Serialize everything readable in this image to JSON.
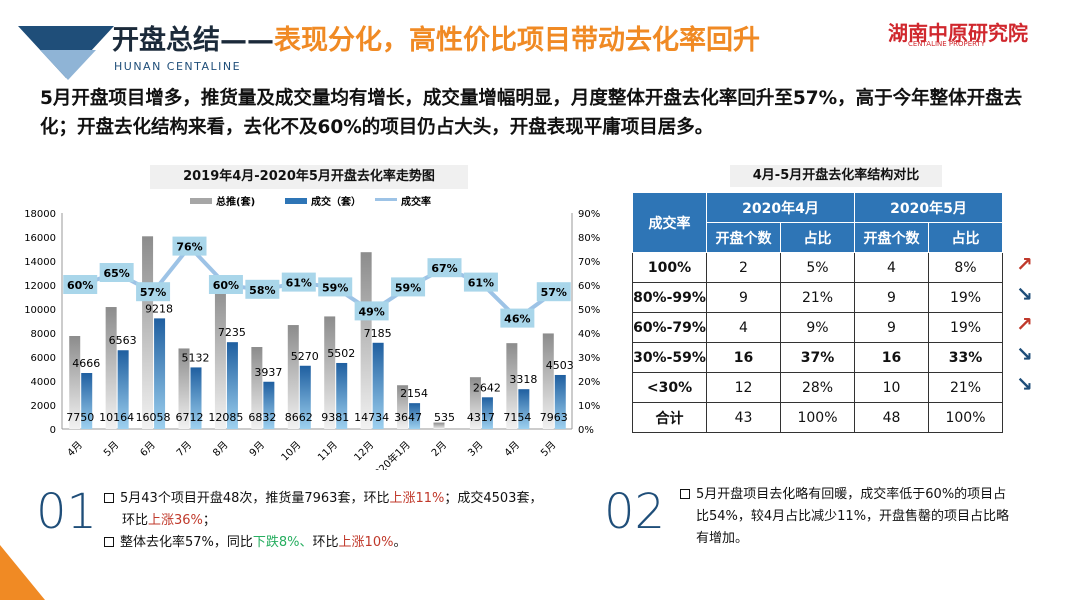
{
  "header": {
    "title_main": "开盘总结——",
    "title_accent": "表现分化，高性价比项目带动去化率回升",
    "subtitle": "HUNAN CENTALINE",
    "brand": "湖南中原研究院",
    "brand_en": "CENTALINE PROPERTY"
  },
  "intro": "5月开盘项目增多，推货量及成交量均有增长，成交量增幅明显，月度整体开盘去化率回升至57%，高于今年整体开盘去化；开盘去化结构来看，去化不及60%的项目仍占大头，开盘表现平庸项目居多。",
  "chart_data": {
    "type": "bar+line",
    "title": "2019年4月-2020年5月开盘去化率走势图",
    "categories": [
      "4月",
      "5月",
      "6月",
      "7月",
      "8月",
      "9月",
      "10月",
      "11月",
      "12月",
      "2020年1月",
      "2月",
      "3月",
      "4月",
      "5月"
    ],
    "series": [
      {
        "name": "总推(套)",
        "type": "bar",
        "color": "#a6a6a6",
        "values": [
          7750,
          10164,
          16058,
          6712,
          12085,
          6832,
          8662,
          9381,
          14734,
          3647,
          535,
          4317,
          7154,
          7963
        ]
      },
      {
        "name": "成交（套）",
        "type": "bar",
        "color": "#2e75b6",
        "values": [
          4666,
          6563,
          9218,
          5132,
          7235,
          3937,
          5270,
          5502,
          7185,
          2154,
          null,
          2642,
          3318,
          4503
        ]
      },
      {
        "name": "成交率",
        "type": "line",
        "axis": "right",
        "color": "#9dc3e6",
        "values": [
          60,
          65,
          57,
          76,
          60,
          58,
          61,
          59,
          49,
          59,
          67,
          61,
          46,
          57
        ]
      }
    ],
    "y_left": {
      "min": 0,
      "max": 18000,
      "ticks": [
        0,
        2000,
        4000,
        6000,
        8000,
        10000,
        12000,
        14000,
        16000,
        18000
      ]
    },
    "y_right": {
      "min": 0,
      "max": 90,
      "ticks": [
        "0%",
        "10%",
        "20%",
        "30%",
        "40%",
        "50%",
        "60%",
        "70%",
        "80%",
        "90%"
      ]
    },
    "legend": "top"
  },
  "table": {
    "title": "4月-5月开盘去化率结构对比",
    "head_rate": "成交率",
    "apr": "2020年4月",
    "may": "2020年5月",
    "count": "开盘个数",
    "share": "占比",
    "rows": [
      {
        "label": "100%",
        "a": "2",
        "ap": "5%",
        "m": "4",
        "mp": "8%",
        "trend": "up"
      },
      {
        "label": "80%-99%",
        "a": "9",
        "ap": "21%",
        "m": "9",
        "mp": "19%",
        "trend": "down"
      },
      {
        "label": "60%-79%",
        "a": "4",
        "ap": "9%",
        "m": "9",
        "mp": "19%",
        "trend": "up"
      },
      {
        "label": "30%-59%",
        "a": "16",
        "ap": "37%",
        "m": "16",
        "mp": "33%",
        "trend": "down"
      },
      {
        "label": "<30%",
        "a": "12",
        "ap": "28%",
        "m": "10",
        "mp": "21%",
        "trend": "down"
      },
      {
        "label": "合计",
        "a": "43",
        "ap": "100%",
        "m": "48",
        "mp": "100%"
      }
    ],
    "up_color": "#c0392b",
    "down_color": "#1f4e79"
  },
  "notes": {
    "n1": "01",
    "n2": "02",
    "b1a": "5月43个项目开盘48次，推货量7963套，环比",
    "b1b": "上涨11%",
    "b1c": "；成交4503套，",
    "b1d": "环比",
    "b1e": "上涨36%",
    "b1f": "；",
    "b2a": "整体去化率57%，同比",
    "b2b": "下跌8%、",
    "b2c": "环比",
    "b2d": "上涨10%",
    "b2e": "。",
    "b3": "5月开盘项目去化略有回暖，成交率低于60%的项目占比54%，较4月占比减少11%，开盘售罄的项目占比略有增加。"
  }
}
